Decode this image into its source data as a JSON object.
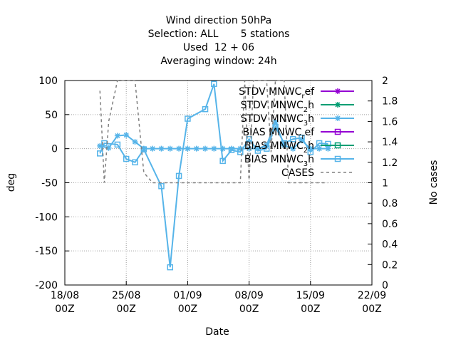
{
  "chart_data": {
    "type": "line",
    "title_lines": [
      "Wind direction 50hPa",
      "Selection: ALL       5 stations",
      "Used  12 + 06",
      "Averaging window: 24h"
    ],
    "xlabel": "Date",
    "ylabel": "deg",
    "y2label": "No cases",
    "xlim": [
      "2023-08-18T00",
      "2023-09-22T00"
    ],
    "ylim": [
      -200,
      100
    ],
    "y2lim": [
      0,
      2
    ],
    "x_ticks": [
      {
        "date": "2023-08-18T00",
        "label": [
          "18/08",
          "00Z"
        ]
      },
      {
        "date": "2023-08-25T00",
        "label": [
          "25/08",
          "00Z"
        ]
      },
      {
        "date": "2023-09-01T00",
        "label": [
          "01/09",
          "00Z"
        ]
      },
      {
        "date": "2023-09-08T00",
        "label": [
          "08/09",
          "00Z"
        ]
      },
      {
        "date": "2023-09-15T00",
        "label": [
          "15/09",
          "00Z"
        ]
      },
      {
        "date": "2023-09-22T00",
        "label": [
          "22/09",
          "00Z"
        ]
      }
    ],
    "y_ticks": [
      100,
      50,
      0,
      -50,
      -100,
      -150,
      -200
    ],
    "y2_ticks": [
      2,
      1.8,
      1.6,
      1.4,
      1.2,
      1,
      0.8,
      0.6,
      0.4,
      0.2,
      0
    ],
    "grid": true,
    "legend_position": "top-right",
    "series": [
      {
        "legend": [
          "STDV MNWC",
          "r",
          "ef"
        ],
        "color": "#9400d3",
        "marker": "star",
        "dashed": false,
        "points": []
      },
      {
        "legend": [
          "STDV MNWC",
          "2",
          "h"
        ],
        "color": "#009e73",
        "marker": "star",
        "dashed": false,
        "points": []
      },
      {
        "legend": [
          "STDV MNWC",
          "3",
          "h"
        ],
        "color": "#56b4e9",
        "marker": "star",
        "dashed": false,
        "points": [
          [
            "2023-08-22T00",
            4
          ],
          [
            "2023-08-23T00",
            1
          ],
          [
            "2023-08-24T00",
            19
          ],
          [
            "2023-08-25T00",
            20
          ],
          [
            "2023-08-26T00",
            10
          ],
          [
            "2023-08-27T00",
            0
          ],
          [
            "2023-08-28T00",
            0
          ],
          [
            "2023-08-29T00",
            0
          ],
          [
            "2023-08-30T00",
            0
          ],
          [
            "2023-08-31T00",
            0
          ],
          [
            "2023-09-01T00",
            0
          ],
          [
            "2023-09-02T00",
            0
          ],
          [
            "2023-09-03T00",
            0
          ],
          [
            "2023-09-04T00",
            0
          ],
          [
            "2023-09-05T00",
            0
          ],
          [
            "2023-09-06T00",
            0
          ],
          [
            "2023-09-07T00",
            0
          ],
          [
            "2023-09-08T00",
            0
          ],
          [
            "2023-09-09T00",
            0
          ],
          [
            "2023-09-10T00",
            5
          ],
          [
            "2023-09-11T00",
            39
          ],
          [
            "2023-09-12T00",
            5
          ],
          [
            "2023-09-13T00",
            0
          ],
          [
            "2023-09-14T00",
            12
          ],
          [
            "2023-09-15T00",
            0
          ],
          [
            "2023-09-16T00",
            0
          ],
          [
            "2023-09-17T00",
            0
          ]
        ]
      },
      {
        "legend": [
          "BIAS MNWC",
          "r",
          "ef"
        ],
        "color": "#9400d3",
        "marker": "square",
        "dashed": false,
        "points": []
      },
      {
        "legend": [
          "BIAS MNWC",
          "2",
          "h"
        ],
        "color": "#009e73",
        "marker": "square",
        "dashed": false,
        "points": []
      },
      {
        "legend": [
          "BIAS MNWC",
          "3",
          "h"
        ],
        "color": "#56b4e9",
        "marker": "square",
        "dashed": false,
        "points": [
          [
            "2023-08-22T00",
            -7
          ],
          [
            "2023-08-22T12",
            8
          ],
          [
            "2023-08-24T00",
            6
          ],
          [
            "2023-08-25T00",
            -15
          ],
          [
            "2023-08-26T00",
            -20
          ],
          [
            "2023-08-27T00",
            -1
          ],
          [
            "2023-08-29T00",
            -55
          ],
          [
            "2023-08-30T00",
            -174
          ],
          [
            "2023-08-31T00",
            -40
          ],
          [
            "2023-09-01T00",
            44
          ],
          [
            "2023-09-03T00",
            58
          ],
          [
            "2023-09-04T00",
            95
          ],
          [
            "2023-09-05T00",
            -18
          ],
          [
            "2023-09-06T00",
            -2
          ],
          [
            "2023-09-07T00",
            -5
          ],
          [
            "2023-09-08T00",
            14
          ],
          [
            "2023-09-09T00",
            -3
          ],
          [
            "2023-09-10T00",
            0
          ],
          [
            "2023-09-11T00",
            32
          ],
          [
            "2023-09-12T00",
            8
          ],
          [
            "2023-09-13T00",
            14
          ],
          [
            "2023-09-14T00",
            16
          ],
          [
            "2023-09-15T00",
            -5
          ],
          [
            "2023-09-16T00",
            8
          ],
          [
            "2023-09-17T00",
            7
          ]
        ]
      },
      {
        "legend": [
          "CASES"
        ],
        "color": "#808080",
        "marker": "none",
        "dashed": true,
        "axis": "y2",
        "points": [
          [
            "2023-08-22T00",
            1.9
          ],
          [
            "2023-08-22T12",
            1.0
          ],
          [
            "2023-08-23T00",
            1.6
          ],
          [
            "2023-08-24T00",
            2.0
          ],
          [
            "2023-08-26T00",
            2.0
          ],
          [
            "2023-08-27T00",
            1.1
          ],
          [
            "2023-08-28T00",
            1.0
          ],
          [
            "2023-09-07T00",
            1.0
          ],
          [
            "2023-09-07T12",
            2.0
          ],
          [
            "2023-09-08T00",
            1.0
          ],
          [
            "2023-09-08T12",
            2.0
          ],
          [
            "2023-09-10T00",
            2.0
          ],
          [
            "2023-09-10T12",
            1.3
          ],
          [
            "2023-09-11T00",
            2.0
          ],
          [
            "2023-09-12T00",
            2.0
          ],
          [
            "2023-09-12T12",
            1.0
          ],
          [
            "2023-09-17T00",
            1.0
          ]
        ]
      }
    ]
  }
}
